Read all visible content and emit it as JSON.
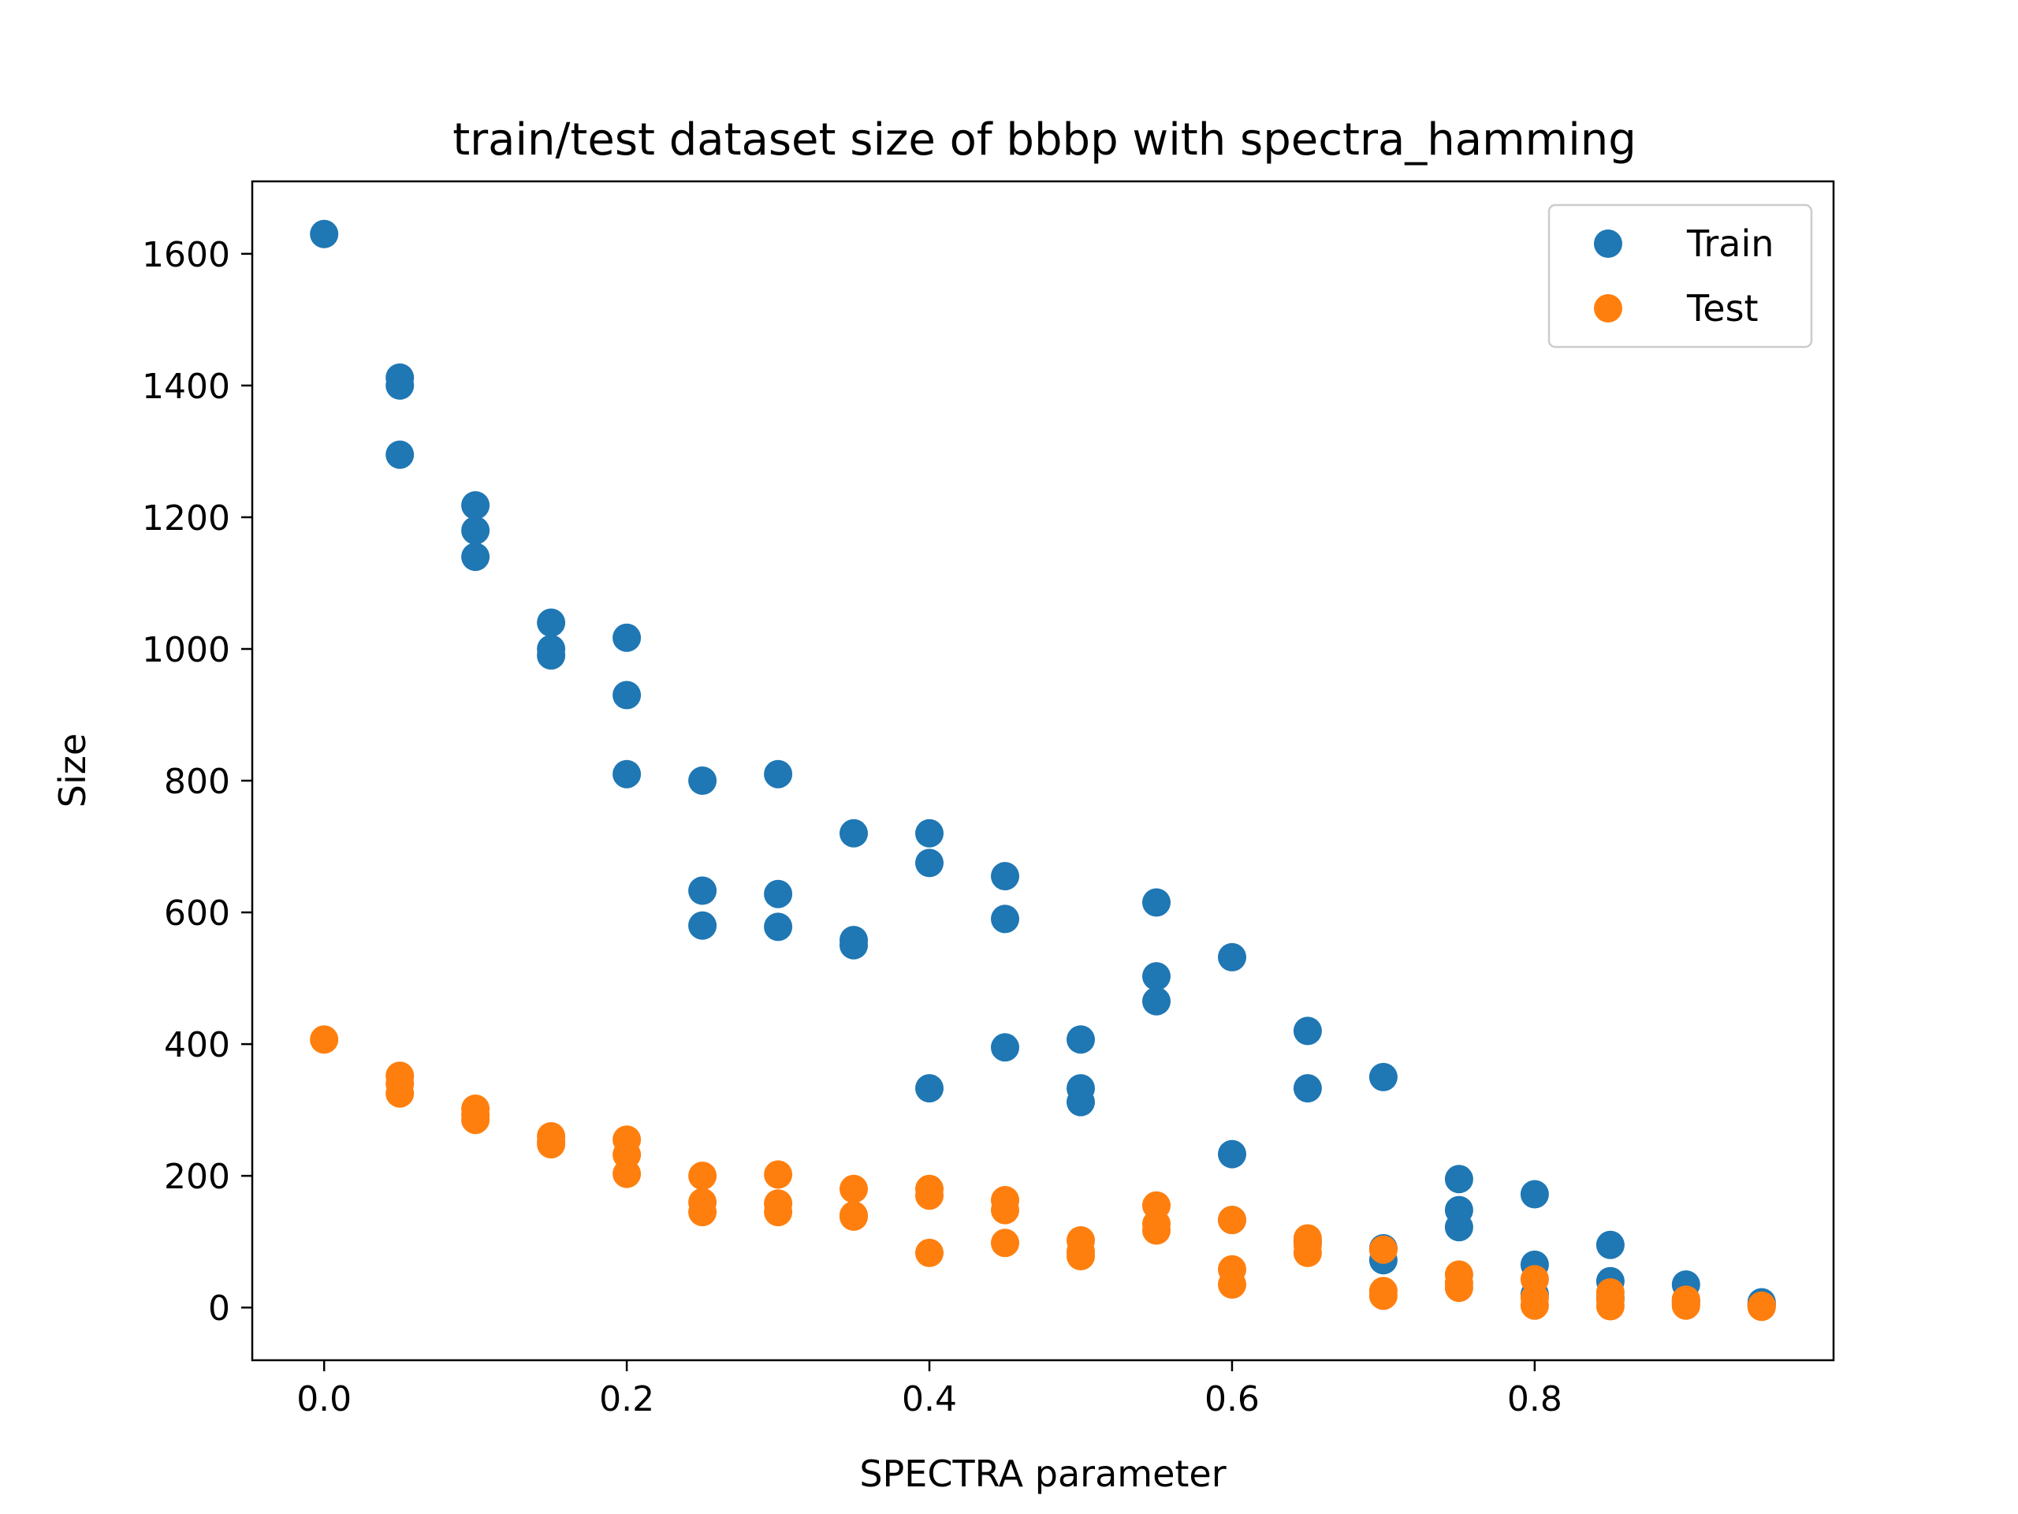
{
  "chart_data": {
    "type": "scatter",
    "title": "train/test dataset size of bbbp with spectra_hamming",
    "xlabel": "SPECTRA parameter",
    "ylabel": "Size",
    "xlim": [
      -0.0475,
      0.9975
    ],
    "ylim": [
      -80,
      1710
    ],
    "xticks": [
      "0.0",
      "0.2",
      "0.4",
      "0.6",
      "0.8"
    ],
    "yticks": [
      "0",
      "200",
      "400",
      "600",
      "800",
      "1000",
      "1200",
      "1400",
      "1600"
    ],
    "legend_position": "top-right",
    "grid": false,
    "series": [
      {
        "name": "Train",
        "color": "#1f77b4",
        "points": [
          [
            0.0,
            1630
          ],
          [
            0.05,
            1412
          ],
          [
            0.05,
            1400
          ],
          [
            0.05,
            1295
          ],
          [
            0.1,
            1218
          ],
          [
            0.1,
            1180
          ],
          [
            0.1,
            1140
          ],
          [
            0.15,
            1040
          ],
          [
            0.15,
            1000
          ],
          [
            0.15,
            990
          ],
          [
            0.2,
            1017
          ],
          [
            0.2,
            930
          ],
          [
            0.2,
            810
          ],
          [
            0.25,
            800
          ],
          [
            0.25,
            633
          ],
          [
            0.25,
            580
          ],
          [
            0.3,
            810
          ],
          [
            0.3,
            628
          ],
          [
            0.3,
            578
          ],
          [
            0.35,
            720
          ],
          [
            0.35,
            558
          ],
          [
            0.35,
            550
          ],
          [
            0.4,
            720
          ],
          [
            0.4,
            675
          ],
          [
            0.4,
            333
          ],
          [
            0.45,
            655
          ],
          [
            0.45,
            590
          ],
          [
            0.45,
            395
          ],
          [
            0.5,
            407
          ],
          [
            0.5,
            333
          ],
          [
            0.5,
            312
          ],
          [
            0.55,
            615
          ],
          [
            0.55,
            503
          ],
          [
            0.55,
            465
          ],
          [
            0.6,
            532
          ],
          [
            0.6,
            233
          ],
          [
            0.6,
            133
          ],
          [
            0.65,
            420
          ],
          [
            0.65,
            333
          ],
          [
            0.65,
            100
          ],
          [
            0.7,
            350
          ],
          [
            0.7,
            90
          ],
          [
            0.7,
            72
          ],
          [
            0.75,
            195
          ],
          [
            0.75,
            148
          ],
          [
            0.75,
            122
          ],
          [
            0.8,
            172
          ],
          [
            0.8,
            65
          ],
          [
            0.8,
            20
          ],
          [
            0.85,
            95
          ],
          [
            0.85,
            40
          ],
          [
            0.85,
            15
          ],
          [
            0.9,
            35
          ],
          [
            0.9,
            12
          ],
          [
            0.9,
            8
          ],
          [
            0.95,
            8
          ],
          [
            0.95,
            5
          ],
          [
            0.95,
            3
          ]
        ]
      },
      {
        "name": "Test",
        "color": "#ff7f0e",
        "points": [
          [
            0.0,
            407
          ],
          [
            0.05,
            352
          ],
          [
            0.05,
            340
          ],
          [
            0.05,
            325
          ],
          [
            0.1,
            302
          ],
          [
            0.1,
            292
          ],
          [
            0.1,
            285
          ],
          [
            0.15,
            260
          ],
          [
            0.15,
            252
          ],
          [
            0.15,
            248
          ],
          [
            0.2,
            255
          ],
          [
            0.2,
            232
          ],
          [
            0.2,
            203
          ],
          [
            0.25,
            200
          ],
          [
            0.25,
            160
          ],
          [
            0.25,
            145
          ],
          [
            0.3,
            202
          ],
          [
            0.3,
            158
          ],
          [
            0.3,
            145
          ],
          [
            0.35,
            180
          ],
          [
            0.35,
            140
          ],
          [
            0.35,
            138
          ],
          [
            0.4,
            180
          ],
          [
            0.4,
            170
          ],
          [
            0.4,
            83
          ],
          [
            0.45,
            163
          ],
          [
            0.45,
            148
          ],
          [
            0.45,
            98
          ],
          [
            0.5,
            102
          ],
          [
            0.5,
            85
          ],
          [
            0.5,
            78
          ],
          [
            0.55,
            155
          ],
          [
            0.55,
            127
          ],
          [
            0.55,
            117
          ],
          [
            0.6,
            133
          ],
          [
            0.6,
            58
          ],
          [
            0.6,
            35
          ],
          [
            0.65,
            105
          ],
          [
            0.65,
            95
          ],
          [
            0.65,
            83
          ],
          [
            0.7,
            88
          ],
          [
            0.7,
            25
          ],
          [
            0.7,
            18
          ],
          [
            0.75,
            50
          ],
          [
            0.75,
            37
          ],
          [
            0.75,
            30
          ],
          [
            0.8,
            43
          ],
          [
            0.8,
            15
          ],
          [
            0.8,
            3
          ],
          [
            0.85,
            23
          ],
          [
            0.85,
            12
          ],
          [
            0.85,
            2
          ],
          [
            0.9,
            12
          ],
          [
            0.9,
            6
          ],
          [
            0.9,
            3
          ],
          [
            0.95,
            3
          ],
          [
            0.95,
            2
          ],
          [
            0.95,
            1
          ]
        ]
      }
    ]
  }
}
